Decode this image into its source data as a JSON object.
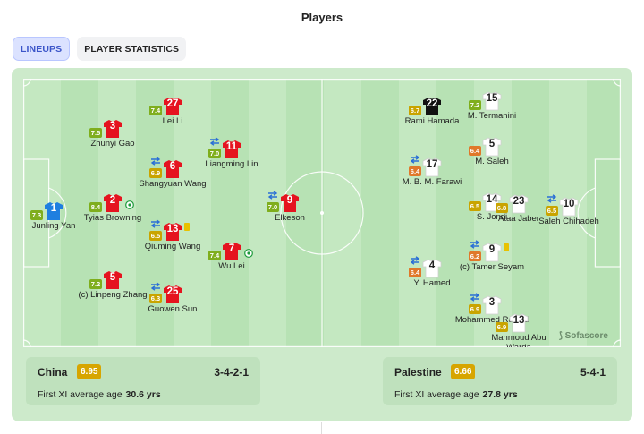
{
  "header": {
    "title": "Players"
  },
  "tabs": [
    {
      "label": "LINEUPS",
      "active": true
    },
    {
      "label": "PLAYER STATISTICS",
      "active": false
    }
  ],
  "colors": {
    "home_shirt": "#e5131f",
    "home_keeper": "#1f7fe0",
    "away_shirt": "#ffffff",
    "away_keeper": "#111111"
  },
  "home_players": [
    {
      "name": "Junling Yan",
      "number": "1",
      "rating": "7.3",
      "rating_color": "green",
      "keeper": true
    },
    {
      "name": "Zhunyi Gao",
      "number": "3",
      "rating": "7.5",
      "rating_color": "green"
    },
    {
      "name": "Tyias Browning",
      "number": "2",
      "rating": "8.4",
      "rating_color": "green",
      "goal": true
    },
    {
      "name": "(c) Linpeng Zhang",
      "number": "5",
      "rating": "7.2",
      "rating_color": "green"
    },
    {
      "name": "Lei Li",
      "number": "27",
      "rating": "7.4",
      "rating_color": "green"
    },
    {
      "name": "Shangyuan Wang",
      "number": "6",
      "rating": "6.9",
      "rating_color": "yellow",
      "sub": true
    },
    {
      "name": "Qiuming Wang",
      "number": "13",
      "rating": "6.5",
      "rating_color": "yellow",
      "sub": true,
      "card": true
    },
    {
      "name": "Guowen Sun",
      "number": "25",
      "rating": "6.3",
      "rating_color": "yellow",
      "sub": true
    },
    {
      "name": "Liangming Lin",
      "number": "11",
      "rating": "7.0",
      "rating_color": "green",
      "sub": true
    },
    {
      "name": "Wu Lei",
      "number": "7",
      "rating": "7.4",
      "rating_color": "green",
      "goal": true
    },
    {
      "name": "Elkeson",
      "number": "9",
      "rating": "7.0",
      "rating_color": "green",
      "sub": true
    }
  ],
  "away_players": [
    {
      "name": "Rami Hamada",
      "number": "22",
      "rating": "6.7",
      "rating_color": "yellow",
      "keeper": true
    },
    {
      "name": "M. B. M. Farawi",
      "number": "17",
      "rating": "6.4",
      "rating_color": "orange",
      "sub": true
    },
    {
      "name": "Y. Hamed",
      "number": "4",
      "rating": "6.4",
      "rating_color": "orange",
      "sub": true
    },
    {
      "name": "M. Termanini",
      "number": "15",
      "rating": "7.2",
      "rating_color": "green"
    },
    {
      "name": "M. Saleh",
      "number": "5",
      "rating": "6.4",
      "rating_color": "orange"
    },
    {
      "name": "S. Jondi",
      "number": "14",
      "rating": "6.5",
      "rating_color": "yellow"
    },
    {
      "name": "(c) Tamer Seyam",
      "number": "9",
      "rating": "6.2",
      "rating_color": "orange",
      "sub": true,
      "card": true
    },
    {
      "name": "Mohammed Rashid",
      "number": "3",
      "rating": "6.9",
      "rating_color": "yellow",
      "sub": true
    },
    {
      "name": "Ataa Jaber",
      "number": "23",
      "rating": "6.8",
      "rating_color": "yellow"
    },
    {
      "name": "Mahmoud Abu Warda",
      "number": "13",
      "rating": "6.9",
      "rating_color": "yellow"
    },
    {
      "name": "Saleh Chihadeh",
      "number": "10",
      "rating": "6.5",
      "rating_color": "yellow",
      "sub": true
    }
  ],
  "watermark": "Sofascore",
  "home_team": {
    "name": "China",
    "rating": "6.95",
    "formation": "3-4-2-1",
    "avg_label": "First XI average age",
    "avg_value": "30.6 yrs"
  },
  "away_team": {
    "name": "Palestine",
    "rating": "6.66",
    "formation": "5-4-1",
    "avg_label": "First XI average age",
    "avg_value": "27.8 yrs"
  }
}
